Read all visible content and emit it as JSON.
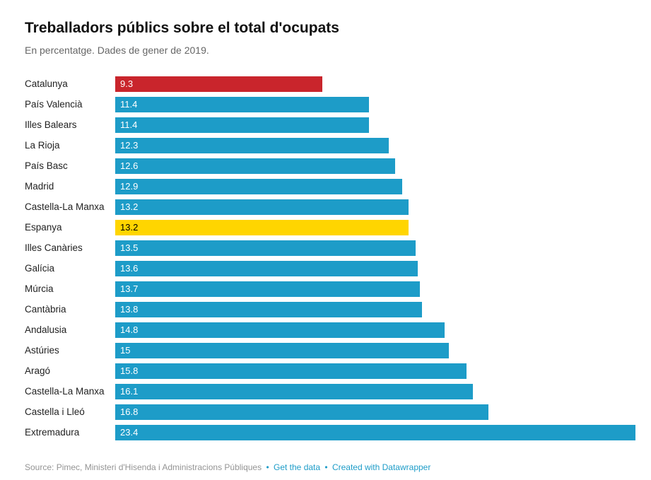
{
  "title": "Treballadors públics sobre el total d'ocupats",
  "subtitle": "En percentatge. Dades de gener de 2019.",
  "footer": {
    "source": "Source: Pimec, Ministeri d'Hisenda i Administracions Públiques",
    "separator": "•",
    "get_data": "Get the data",
    "created_with": "Created with Datawrapper"
  },
  "colors": {
    "blue": "#1d9cc8",
    "red": "#c9252c",
    "yellow": "#ffd500",
    "link": "#1d9cc8",
    "value_text_on_dark": "#ffffff",
    "value_text_on_yellow": "#000000"
  },
  "chart_data": {
    "type": "bar",
    "orientation": "horizontal",
    "title": "Treballadors públics sobre el total d'ocupats",
    "subtitle": "En percentatge. Dades de gener de 2019.",
    "xlabel": "",
    "ylabel": "",
    "xlim": [
      0,
      23.4
    ],
    "grid": false,
    "legend": false,
    "rows": [
      {
        "label": "Catalunya",
        "value": 9.3,
        "display": "9.3",
        "color": "red"
      },
      {
        "label": "País Valencià",
        "value": 11.4,
        "display": "11.4",
        "color": "blue"
      },
      {
        "label": "Illes Balears",
        "value": 11.4,
        "display": "11.4",
        "color": "blue"
      },
      {
        "label": "La Rioja",
        "value": 12.3,
        "display": "12.3",
        "color": "blue"
      },
      {
        "label": "País Basc",
        "value": 12.6,
        "display": "12.6",
        "color": "blue"
      },
      {
        "label": "Madrid",
        "value": 12.9,
        "display": "12.9",
        "color": "blue"
      },
      {
        "label": "Castella-La Manxa",
        "value": 13.2,
        "display": "13.2",
        "color": "blue"
      },
      {
        "label": "Espanya",
        "value": 13.2,
        "display": "13.2",
        "color": "yellow"
      },
      {
        "label": "Illes Canàries",
        "value": 13.5,
        "display": "13.5",
        "color": "blue"
      },
      {
        "label": "Galícia",
        "value": 13.6,
        "display": "13.6",
        "color": "blue"
      },
      {
        "label": "Múrcia",
        "value": 13.7,
        "display": "13.7",
        "color": "blue"
      },
      {
        "label": "Cantàbria",
        "value": 13.8,
        "display": "13.8",
        "color": "blue"
      },
      {
        "label": "Andalusia",
        "value": 14.8,
        "display": "14.8",
        "color": "blue"
      },
      {
        "label": "Astúries",
        "value": 15,
        "display": "15",
        "color": "blue"
      },
      {
        "label": "Aragó",
        "value": 15.8,
        "display": "15.8",
        "color": "blue"
      },
      {
        "label": "Castella-La Manxa",
        "value": 16.1,
        "display": "16.1",
        "color": "blue"
      },
      {
        "label": "Castella i Lleó",
        "value": 16.8,
        "display": "16.8",
        "color": "blue"
      },
      {
        "label": "Extremadura",
        "value": 23.4,
        "display": "23.4",
        "color": "blue"
      }
    ]
  }
}
